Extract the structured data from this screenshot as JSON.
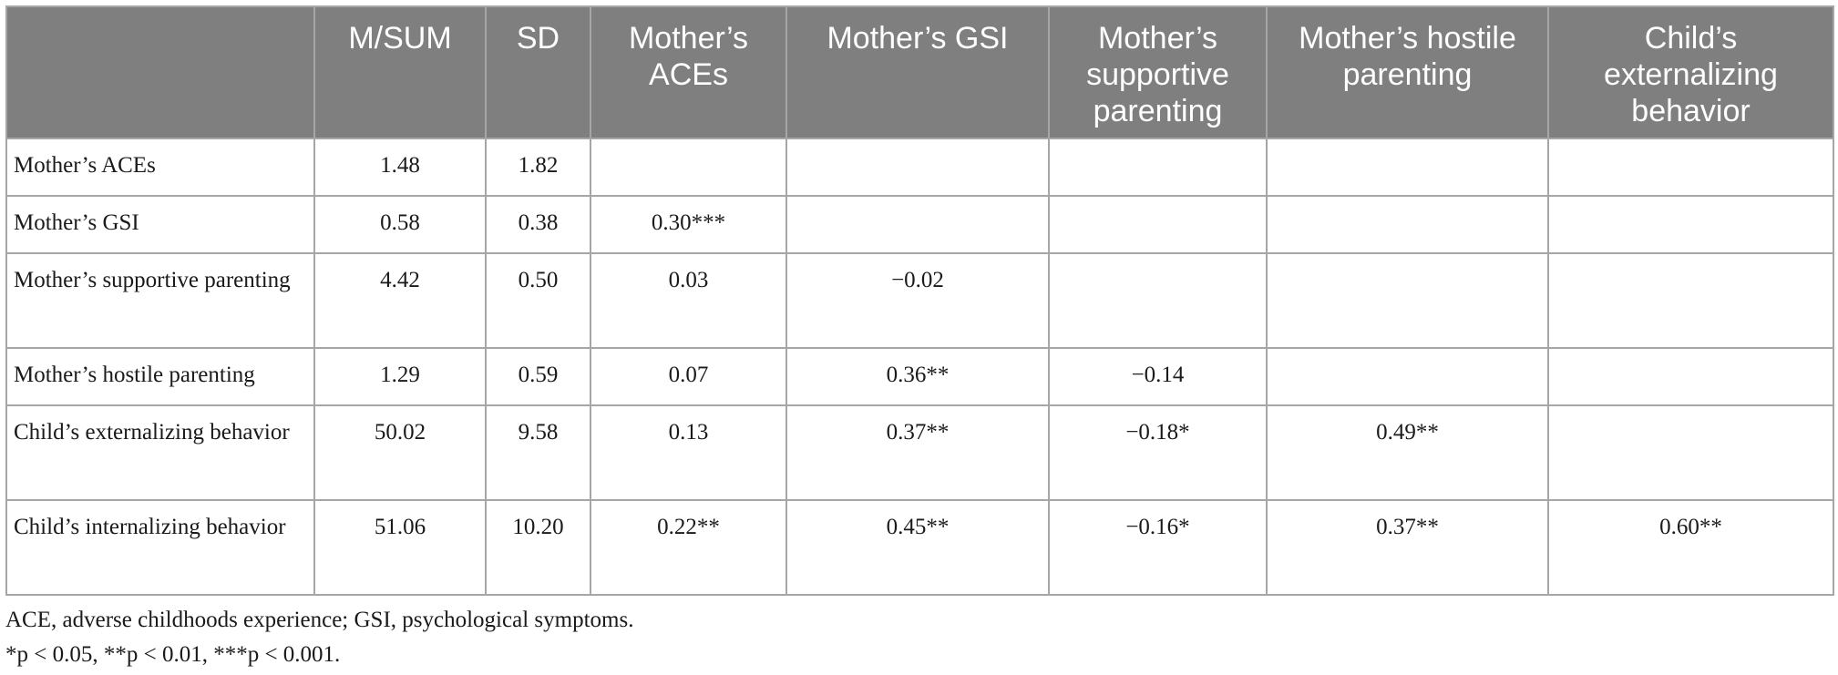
{
  "table": {
    "headers": [
      "",
      "M/SUM",
      "SD",
      "Mother’s ACEs",
      "Mother’s GSI",
      "Mother’s supportive parenting",
      "Mother’s hostile parenting",
      "Child’s externalizing behavior"
    ],
    "rows": [
      {
        "label": "Mother’s ACEs",
        "cells": [
          "1.48",
          "1.82",
          "",
          "",
          "",
          "",
          ""
        ]
      },
      {
        "label": "Mother’s GSI",
        "cells": [
          "0.58",
          "0.38",
          "0.30***",
          "",
          "",
          "",
          ""
        ]
      },
      {
        "label": "Mother’s supportive parenting",
        "cells": [
          "4.42",
          "0.50",
          "0.03",
          "−0.02",
          "",
          "",
          ""
        ]
      },
      {
        "label": "Mother’s hostile parenting",
        "cells": [
          "1.29",
          "0.59",
          "0.07",
          "0.36**",
          "−0.14",
          "",
          ""
        ]
      },
      {
        "label": "Child’s externalizing behavior",
        "cells": [
          "50.02",
          "9.58",
          "0.13",
          "0.37**",
          "−0.18*",
          "0.49**",
          ""
        ]
      },
      {
        "label": "Child’s internalizing behavior",
        "cells": [
          "51.06",
          "10.20",
          "0.22**",
          "0.45**",
          "−0.16*",
          "0.37**",
          "0.60**"
        ]
      }
    ]
  },
  "notes": {
    "abbreviations": "ACE, adverse childhoods experience; GSI, psychological symptoms.",
    "significance": "*p < 0.05, **p < 0.01, ***p < 0.001."
  }
}
